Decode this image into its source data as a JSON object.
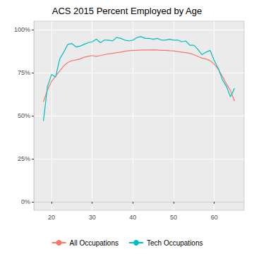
{
  "chart_data": {
    "type": "line",
    "title": "ACS 2015 Percent Employed by Age",
    "x": [
      18,
      19,
      20,
      21,
      22,
      23,
      24,
      25,
      26,
      27,
      28,
      29,
      30,
      31,
      32,
      33,
      34,
      35,
      36,
      37,
      38,
      39,
      40,
      41,
      42,
      43,
      44,
      45,
      46,
      47,
      48,
      49,
      50,
      51,
      52,
      53,
      54,
      55,
      56,
      57,
      58,
      59,
      60,
      61,
      62,
      63,
      64,
      65
    ],
    "series": [
      {
        "name": "All Occupations",
        "color": "#F8766D",
        "values": [
          58,
          65,
          70,
          73,
          76,
          79,
          81,
          82,
          82.5,
          83,
          84,
          84.5,
          85,
          84.5,
          85,
          85.5,
          86,
          86.3,
          86.7,
          87,
          87.5,
          87.8,
          88,
          88,
          88.2,
          88.2,
          88.2,
          88.3,
          88.2,
          88,
          88,
          87.8,
          87.7,
          87.3,
          87,
          86.7,
          86.3,
          85.5,
          84.5,
          83.5,
          83,
          82,
          80,
          77,
          73,
          68.5,
          64.5,
          58.5
        ]
      },
      {
        "name": "Tech Occupations",
        "color": "#00BFC4",
        "values": [
          47,
          67,
          74,
          72.5,
          83,
          87,
          91.5,
          92,
          90,
          90.5,
          91.5,
          92.5,
          93,
          94.5,
          92.5,
          94,
          94,
          93.5,
          95.5,
          95,
          94,
          93.5,
          94,
          95.5,
          96,
          95,
          95,
          94.5,
          95,
          94,
          94,
          94.5,
          94,
          94,
          93,
          93.5,
          91,
          91,
          88.5,
          85.5,
          87,
          88,
          82,
          77.5,
          71,
          67,
          61,
          66
        ]
      }
    ],
    "xlim": [
      15.65,
      67.35
    ],
    "xticks": [
      20,
      30,
      40,
      50,
      60
    ],
    "ylim": [
      -5,
      105
    ],
    "yticks": [
      {
        "value": 0,
        "label": "0%"
      },
      {
        "value": 25,
        "label": "25%"
      },
      {
        "value": 50,
        "label": "50%"
      },
      {
        "value": 75,
        "label": "75%"
      },
      {
        "value": 100,
        "label": "100%"
      }
    ],
    "grid": true,
    "legend": "bottom"
  }
}
